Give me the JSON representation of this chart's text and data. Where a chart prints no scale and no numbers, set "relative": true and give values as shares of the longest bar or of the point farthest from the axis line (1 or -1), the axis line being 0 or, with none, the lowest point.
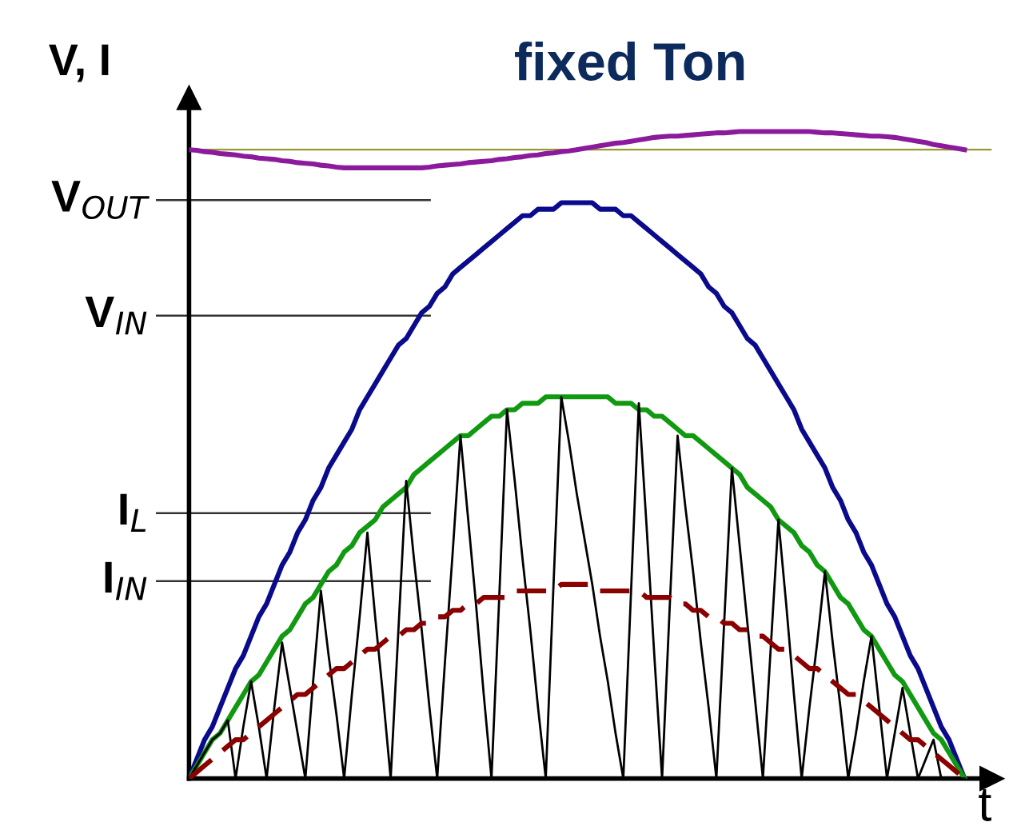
{
  "chart_data": {
    "type": "line",
    "relative": true,
    "title": "fixed Ton",
    "xlabel": "t",
    "ylabel": "V, I",
    "tick_labels": false,
    "categories": [
      null,
      null,
      null,
      null,
      null,
      null,
      null,
      null,
      null,
      null,
      null,
      null,
      null,
      null,
      null,
      null,
      null,
      null,
      null,
      null,
      null,
      null,
      null,
      null,
      null,
      null,
      null,
      null,
      null,
      null,
      null,
      null,
      null,
      null,
      null,
      null,
      null,
      null,
      null,
      null,
      null,
      null,
      null,
      null,
      null,
      null,
      null,
      null,
      null,
      null,
      null,
      null,
      null,
      null,
      null,
      null,
      null,
      null,
      null,
      null,
      null,
      null,
      null,
      null,
      null,
      null,
      null,
      null,
      null,
      null,
      null,
      null,
      null,
      null,
      null,
      null,
      null,
      null,
      null,
      null,
      null,
      null,
      null,
      null,
      null,
      null,
      null,
      null,
      null,
      null,
      null,
      null,
      null,
      null,
      null,
      null,
      null,
      null,
      null,
      null,
      null
    ],
    "series": [
      {
        "color": "#8b1a9c",
        "line_style": "solid",
        "values": [
          0.972,
          0.971,
          0.969,
          0.968,
          0.966,
          0.965,
          0.964,
          0.962,
          0.961,
          0.959,
          0.958,
          0.957,
          0.955,
          0.954,
          0.952,
          0.951,
          0.95,
          0.948,
          0.947,
          0.945,
          0.944,
          0.944,
          0.944,
          0.944,
          0.944,
          0.944,
          0.944,
          0.944,
          0.944,
          0.944,
          0.944,
          0.945,
          0.947,
          0.948,
          0.949,
          0.95,
          0.952,
          0.953,
          0.954,
          0.955,
          0.957,
          0.958,
          0.96,
          0.961,
          0.963,
          0.964,
          0.966,
          0.967,
          0.969,
          0.97,
          0.972,
          0.974,
          0.976,
          0.978,
          0.98,
          0.982,
          0.983,
          0.985,
          0.987,
          0.989,
          0.991,
          0.992,
          0.993,
          0.993,
          0.994,
          0.995,
          0.996,
          0.997,
          0.998,
          0.998,
          0.999,
          1.0,
          1.0,
          1.0,
          1.0,
          1.0,
          1.0,
          1.0,
          1.0,
          1.0,
          1.0,
          0.999,
          0.998,
          0.998,
          0.997,
          0.996,
          0.995,
          0.994,
          0.993,
          0.993,
          0.992,
          0.991,
          0.989,
          0.987,
          0.985,
          0.983,
          0.98,
          0.978,
          0.976,
          0.974,
          0.972
        ]
      },
      {
        "color": "#0a0a8c",
        "line_style": "solid",
        "values": [
          0,
          0.03,
          0.06,
          0.08,
          0.11,
          0.14,
          0.17,
          0.19,
          0.22,
          0.25,
          0.27,
          0.3,
          0.33,
          0.35,
          0.38,
          0.4,
          0.43,
          0.45,
          0.48,
          0.5,
          0.52,
          0.54,
          0.57,
          0.59,
          0.61,
          0.63,
          0.65,
          0.67,
          0.68,
          0.7,
          0.72,
          0.73,
          0.75,
          0.76,
          0.78,
          0.79,
          0.8,
          0.81,
          0.82,
          0.83,
          0.84,
          0.85,
          0.86,
          0.87,
          0.87,
          0.88,
          0.88,
          0.88,
          0.89,
          0.89,
          0.89,
          0.89,
          0.89,
          0.88,
          0.88,
          0.88,
          0.87,
          0.87,
          0.86,
          0.85,
          0.84,
          0.83,
          0.82,
          0.81,
          0.8,
          0.79,
          0.78,
          0.76,
          0.75,
          0.73,
          0.72,
          0.7,
          0.68,
          0.67,
          0.65,
          0.63,
          0.61,
          0.59,
          0.57,
          0.54,
          0.52,
          0.5,
          0.48,
          0.45,
          0.43,
          0.4,
          0.38,
          0.35,
          0.33,
          0.3,
          0.27,
          0.25,
          0.22,
          0.19,
          0.17,
          0.14,
          0.11,
          0.08,
          0.06,
          0.03,
          0
        ]
      },
      {
        "color": "#119911",
        "line_style": "solid",
        "values": [
          0,
          0.02,
          0.04,
          0.06,
          0.07,
          0.09,
          0.11,
          0.13,
          0.15,
          0.16,
          0.18,
          0.2,
          0.22,
          0.23,
          0.25,
          0.27,
          0.28,
          0.3,
          0.32,
          0.33,
          0.35,
          0.36,
          0.38,
          0.39,
          0.4,
          0.42,
          0.43,
          0.44,
          0.45,
          0.47,
          0.48,
          0.49,
          0.5,
          0.51,
          0.52,
          0.53,
          0.53,
          0.54,
          0.55,
          0.56,
          0.56,
          0.57,
          0.57,
          0.58,
          0.58,
          0.58,
          0.59,
          0.59,
          0.59,
          0.59,
          0.59,
          0.59,
          0.59,
          0.59,
          0.59,
          0.58,
          0.58,
          0.58,
          0.57,
          0.57,
          0.56,
          0.56,
          0.55,
          0.54,
          0.53,
          0.53,
          0.52,
          0.51,
          0.5,
          0.49,
          0.48,
          0.47,
          0.45,
          0.44,
          0.43,
          0.42,
          0.4,
          0.39,
          0.38,
          0.36,
          0.35,
          0.33,
          0.32,
          0.3,
          0.28,
          0.27,
          0.25,
          0.23,
          0.22,
          0.2,
          0.18,
          0.16,
          0.15,
          0.13,
          0.11,
          0.09,
          0.07,
          0.06,
          0.04,
          0.02,
          0
        ]
      },
      {
        "color": "#000000",
        "line_style": "solid",
        "values": [
          0,
          0.02,
          0.04,
          0.06,
          0.07,
          0.09,
          0,
          0.08,
          0.15,
          0.08,
          0,
          0.11,
          0.21,
          0.14,
          0.07,
          0,
          0.15,
          0.29,
          0.19,
          0.1,
          0,
          0.13,
          0.25,
          0.38,
          0.25,
          0.13,
          0,
          0.23,
          0.46,
          0.34,
          0.23,
          0.11,
          0,
          0.18,
          0.35,
          0.53,
          0.4,
          0.27,
          0.13,
          0,
          0.28,
          0.57,
          0.46,
          0.34,
          0.23,
          0.11,
          0,
          0.3,
          0.59,
          0.52,
          0.44,
          0.37,
          0.3,
          0.22,
          0.15,
          0.07,
          0,
          0.29,
          0.58,
          0.39,
          0.19,
          0,
          0.27,
          0.53,
          0.42,
          0.32,
          0.21,
          0.11,
          0,
          0.24,
          0.48,
          0.36,
          0.24,
          0.12,
          0,
          0.2,
          0.4,
          0.27,
          0.13,
          0,
          0.11,
          0.21,
          0.32,
          0.21,
          0.11,
          0,
          0.07,
          0.15,
          0.22,
          0.11,
          0,
          0.07,
          0.14,
          0.07,
          0,
          0.03,
          0.06,
          0,
          0,
          0,
          0
        ]
      },
      {
        "color": "#8b0000",
        "line_style": "dashed",
        "values": [
          0,
          0.01,
          0.02,
          0.03,
          0.04,
          0.05,
          0.06,
          0.06,
          0.07,
          0.08,
          0.09,
          0.1,
          0.11,
          0.12,
          0.13,
          0.13,
          0.14,
          0.15,
          0.16,
          0.17,
          0.17,
          0.18,
          0.19,
          0.2,
          0.2,
          0.21,
          0.22,
          0.22,
          0.23,
          0.23,
          0.24,
          0.24,
          0.25,
          0.25,
          0.26,
          0.26,
          0.27,
          0.27,
          0.28,
          0.28,
          0.28,
          0.28,
          0.29,
          0.29,
          0.29,
          0.29,
          0.29,
          0.29,
          0.3,
          0.3,
          0.3,
          0.3,
          0.3,
          0.29,
          0.29,
          0.29,
          0.29,
          0.29,
          0.29,
          0.28,
          0.28,
          0.28,
          0.28,
          0.27,
          0.27,
          0.26,
          0.26,
          0.25,
          0.25,
          0.24,
          0.24,
          0.23,
          0.23,
          0.22,
          0.22,
          0.21,
          0.2,
          0.2,
          0.19,
          0.18,
          0.17,
          0.17,
          0.16,
          0.15,
          0.14,
          0.13,
          0.13,
          0.12,
          0.11,
          0.1,
          0.09,
          0.08,
          0.07,
          0.06,
          0.06,
          0.05,
          0.04,
          0.03,
          0.02,
          0.01,
          0
        ]
      }
    ],
    "ref_lines": [
      {
        "axis": "y",
        "value": 0.972,
        "color": "#999933"
      }
    ],
    "annotations": [
      "V$_{OUT}$",
      "V$_{IN}$",
      "I$_{L}$",
      "I$_{IN}$"
    ]
  }
}
